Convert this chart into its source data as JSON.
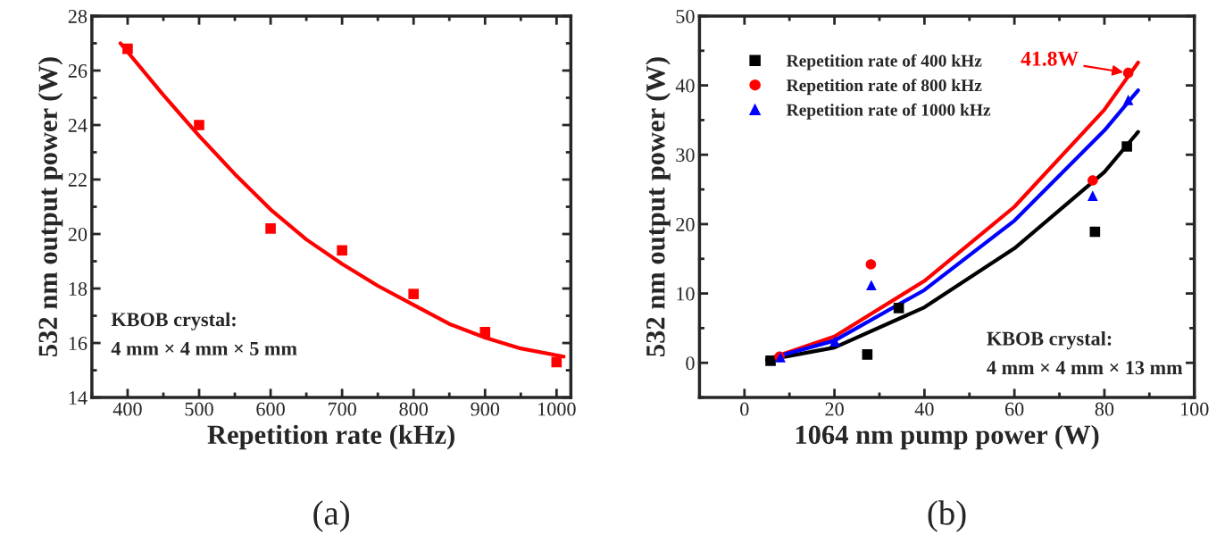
{
  "chart_data": [
    {
      "type": "scatter",
      "xlabel": "Repetition rate (kHz)",
      "ylabel": "532 nm output power (W)",
      "xlim": [
        350,
        1020
      ],
      "xticks": [
        400,
        500,
        600,
        700,
        800,
        900,
        1000
      ],
      "ylim": [
        14,
        28
      ],
      "yticks": [
        14,
        16,
        18,
        20,
        22,
        24,
        26,
        28
      ],
      "grid": false,
      "legend": false,
      "annotations": [
        "KBOB crystal:\n4 mm × 4 mm × 5 mm",
        "(a)"
      ],
      "series": [
        {
          "color": "#ff0000",
          "marker": "square",
          "x": [
            400,
            500,
            600,
            700,
            800,
            900,
            1000
          ],
          "values": [
            26.8,
            24.0,
            20.2,
            19.4,
            17.8,
            16.4,
            15.3
          ]
        },
        {
          "type": "line",
          "color": "#ff0000",
          "marker": "none",
          "line_style": "solid",
          "x": [
            390,
            450,
            500,
            550,
            600,
            650,
            700,
            750,
            800,
            850,
            900,
            950,
            1010
          ],
          "values": [
            27.0,
            25.1,
            23.6,
            22.2,
            20.9,
            19.8,
            18.9,
            18.1,
            17.4,
            16.7,
            16.2,
            15.8,
            15.5
          ]
        }
      ]
    },
    {
      "type": "scatter",
      "xlabel": "1064 nm pump power (W)",
      "ylabel": "532 nm output power (W)",
      "xlim": [
        -10,
        100
      ],
      "xticks": [
        0,
        20,
        40,
        60,
        80,
        100
      ],
      "ylim": [
        -5,
        50
      ],
      "yticks": [
        0,
        10,
        20,
        30,
        40,
        50
      ],
      "grid": false,
      "legend": "top left",
      "annotations": [
        {
          "text": "41.8W",
          "x": 85.3,
          "y": 41.8
        },
        "KBOB crystal:\n4 mm × 4 mm × 13 mm",
        "(b)"
      ],
      "series": [
        {
          "name": "Repetition rate of 400 kHz",
          "color": "#000000",
          "marker": "square",
          "x": [
            5.8,
            27.3,
            34.3,
            77.9,
            85.0
          ],
          "values": [
            0.3,
            1.2,
            7.9,
            18.9,
            31.2
          ]
        },
        {
          "name": "Repetition rate of 800 kHz",
          "color": "#ff0000",
          "marker": "circle",
          "x": [
            7.8,
            28.1,
            77.4,
            85.3
          ],
          "values": [
            0.9,
            14.2,
            26.3,
            41.8
          ]
        },
        {
          "name": "Repetition rate of 1000 kHz",
          "color": "#0000ff",
          "marker": "triangle",
          "x": [
            8.0,
            20.1,
            28.2,
            77.4,
            85.3
          ],
          "values": [
            0.8,
            3.1,
            11.2,
            24.1,
            37.9
          ]
        },
        {
          "type": "line",
          "color": "#000000",
          "marker": "none",
          "line_style": "solid",
          "x": [
            5,
            20,
            40,
            60,
            80,
            87.5
          ],
          "values": [
            0.4,
            2.2,
            8.0,
            16.5,
            27.5,
            33.3
          ]
        },
        {
          "type": "line",
          "color": "#ff0000",
          "marker": "none",
          "line_style": "solid",
          "x": [
            5,
            20,
            40,
            60,
            80,
            87.5
          ],
          "values": [
            0.5,
            3.8,
            11.8,
            22.5,
            36.5,
            43.3
          ]
        },
        {
          "type": "line",
          "color": "#0000ff",
          "marker": "none",
          "line_style": "solid",
          "x": [
            5,
            20,
            40,
            60,
            80,
            87.5
          ],
          "values": [
            0.5,
            3.2,
            10.5,
            20.5,
            33.5,
            39.3
          ]
        }
      ]
    }
  ]
}
